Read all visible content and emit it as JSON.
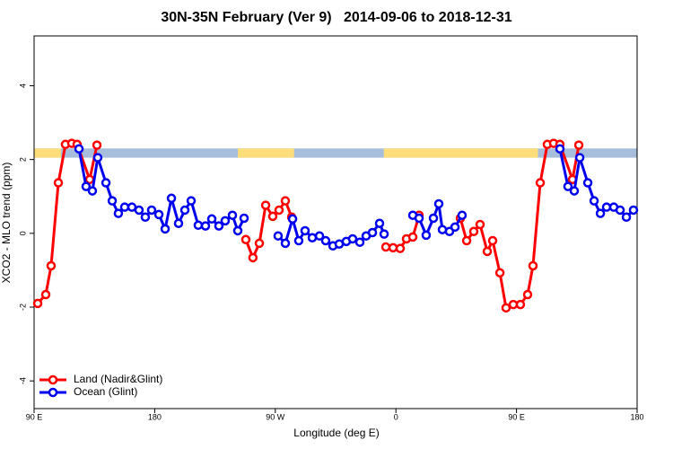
{
  "chart_data": {
    "type": "line",
    "title": "30N-35N February (Ver 9)   2014-09-06 to 2018-12-31",
    "x_label": "Longitude (deg E)",
    "y_label": "XCO2 - MLO trend (ppm)",
    "xlim": [
      90,
      540
    ],
    "ylim": [
      -4.75,
      5.35
    ],
    "xticks": [
      {
        "value": 90,
        "label": "90 E"
      },
      180,
      {
        "value": 270,
        "label": "90 W"
      },
      {
        "value": 360,
        "label": "0"
      },
      {
        "value": 450,
        "label": "90 E"
      },
      180
    ],
    "yticks": [
      -4,
      -2,
      0,
      2,
      4
    ],
    "legend": "bottom-left",
    "band": {
      "range": [
        2.05,
        2.3
      ],
      "ocean_color": "#a6bddb",
      "land_color": "#fddc7a",
      "land": [
        [
          90,
          110
        ],
        [
          242,
          284
        ],
        [
          351,
          466
        ]
      ]
    },
    "series": [
      {
        "name": "Land (Nadir&Glint)",
        "color": "#ff0000",
        "x": [
          92.7,
          98.7,
          102.7,
          108.1,
          113.4,
          118.1,
          122.1,
          131.5,
          136.9,
          null,
          248.0,
          253.3,
          258.1,
          262.8,
          268.1,
          272.8,
          277.5,
          282.2,
          null,
          352.5,
          357.9,
          363.2,
          367.9,
          372.6,
          377.3,
          null,
          408.1,
          412.8,
          418.1,
          422.8,
          428.2,
          432.2,
          437.6,
          442.2,
          447.6,
          452.9,
          458.3,
          462.3,
          467.7,
          473.0,
          477.7,
          482.4,
          491.8,
          496.5
        ],
        "values": [
          -1.9,
          -1.66,
          -0.88,
          1.37,
          2.41,
          2.44,
          2.41,
          1.46,
          2.39,
          null,
          -0.17,
          -0.66,
          -0.27,
          0.76,
          0.46,
          0.63,
          0.88,
          0.44,
          null,
          -0.37,
          -0.39,
          -0.41,
          -0.15,
          -0.1,
          0.49,
          null,
          0.41,
          -0.2,
          0.05,
          0.24,
          -0.49,
          -0.2,
          -1.07,
          -2.02,
          -1.93,
          -1.93,
          -1.66,
          -0.88,
          1.37,
          2.41,
          2.44,
          2.41,
          1.46,
          2.39
        ]
      },
      {
        "name": "Ocean (Glint)",
        "color": "#0000ee",
        "x": [
          123.5,
          128.8,
          133.5,
          137.5,
          143.6,
          148.3,
          152.9,
          157.6,
          163.0,
          168.3,
          173.0,
          177.7,
          183.1,
          187.8,
          192.5,
          197.8,
          202.5,
          207.2,
          212.5,
          217.9,
          222.6,
          227.9,
          232.6,
          238.0,
          242.0,
          246.7,
          null,
          272.1,
          277.5,
          282.9,
          287.5,
          292.2,
          297.6,
          303.0,
          307.6,
          313.0,
          317.7,
          323.0,
          327.7,
          333.1,
          337.8,
          342.5,
          347.8,
          351.2,
          null,
          372.6,
          377.3,
          382.6,
          388.0,
          392.0,
          394.7,
          400.0,
          404.1,
          409.4,
          null,
          482.4,
          488.4,
          493.1,
          497.2,
          503.2,
          507.9,
          512.6,
          517.2,
          522.6,
          527.3,
          532.0,
          537.3
        ],
        "values": [
          2.29,
          1.27,
          1.15,
          2.05,
          1.37,
          0.88,
          0.54,
          0.71,
          0.71,
          0.63,
          0.44,
          0.63,
          0.51,
          0.12,
          0.95,
          0.27,
          0.63,
          0.88,
          0.22,
          0.2,
          0.39,
          0.2,
          0.34,
          0.49,
          0.07,
          0.41,
          null,
          -0.07,
          -0.27,
          0.39,
          -0.2,
          0.07,
          -0.12,
          -0.07,
          -0.2,
          -0.34,
          -0.29,
          -0.22,
          -0.15,
          -0.24,
          -0.07,
          0.02,
          0.27,
          -0.02,
          null,
          0.49,
          0.41,
          -0.05,
          0.41,
          0.8,
          0.1,
          0.05,
          0.17,
          0.49,
          null,
          2.29,
          1.27,
          1.15,
          2.05,
          1.37,
          0.88,
          0.54,
          0.71,
          0.71,
          0.63,
          0.44,
          0.63
        ]
      }
    ]
  }
}
